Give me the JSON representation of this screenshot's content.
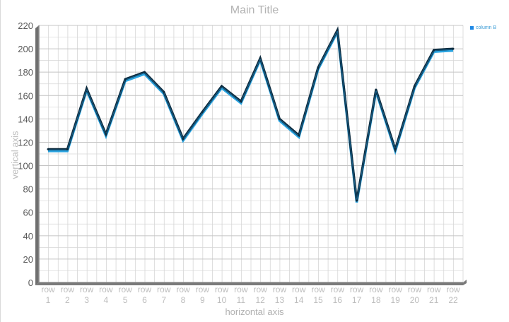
{
  "chart_data": {
    "type": "line",
    "title": "Main Title",
    "xlabel": "horizontal axis",
    "ylabel": "vertical axis",
    "legend": {
      "label": "column B",
      "position": "top-right",
      "color": "#1e88e5"
    },
    "categories": [
      "row 1",
      "row 2",
      "row 3",
      "row 4",
      "row 5",
      "row 6",
      "row 7",
      "row 8",
      "row 9",
      "row 10",
      "row 11",
      "row 12",
      "row 13",
      "row 14",
      "row 15",
      "row 16",
      "row 17",
      "row 18",
      "row 19",
      "row 20",
      "row 21",
      "row 22"
    ],
    "series": [
      {
        "name": "column B",
        "values": [
          114,
          114,
          166,
          127,
          174,
          180,
          163,
          123,
          146,
          168,
          155,
          192,
          140,
          126,
          184,
          216,
          70,
          165,
          114,
          168,
          199,
          200
        ]
      }
    ],
    "yticks": [
      0,
      20,
      40,
      60,
      80,
      100,
      120,
      140,
      160,
      180,
      200,
      220
    ],
    "ylim": [
      0,
      220
    ],
    "grid": true,
    "colors": {
      "line_dark": "#0d2b3e",
      "line_light": "#29a3e0",
      "grid": "#d6d6d6",
      "axis": "#8a8a8a",
      "tick_text": "#5a5a5a",
      "cat_text": "#bdbdbd"
    }
  }
}
